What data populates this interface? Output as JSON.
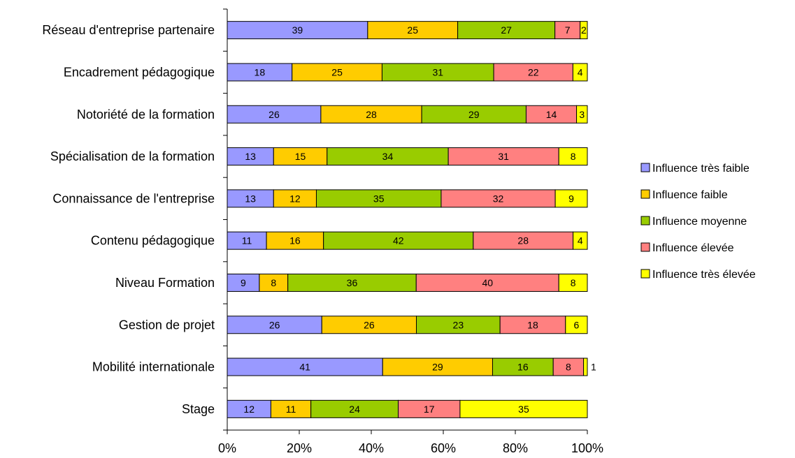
{
  "chart_data": {
    "type": "bar",
    "orientation": "horizontal",
    "stacked": "percent",
    "title": "",
    "xlabel": "",
    "ylabel": "",
    "xlim": [
      0,
      100
    ],
    "x_ticks": [
      "0%",
      "20%",
      "40%",
      "60%",
      "80%",
      "100%"
    ],
    "grid": false,
    "legend_position": "right",
    "categories": [
      "Réseau d'entreprise partenaire",
      "Encadrement pédagogique",
      "Notoriété de la formation",
      "Spécialisation de la formation",
      "Connaissance de l'entreprise",
      "Contenu pédagogique",
      "Niveau Formation",
      "Gestion de projet",
      "Mobilité internationale",
      "Stage"
    ],
    "series": [
      {
        "name": "Influence très faible",
        "color": "#9999ff",
        "values": [
          39,
          18,
          26,
          13,
          13,
          11,
          9,
          26,
          41,
          12
        ]
      },
      {
        "name": "Influence faible",
        "color": "#ffcc00",
        "values": [
          25,
          25,
          28,
          15,
          12,
          16,
          8,
          26,
          29,
          11
        ]
      },
      {
        "name": "Influence moyenne",
        "color": "#99cc00",
        "values": [
          27,
          31,
          29,
          34,
          35,
          42,
          36,
          23,
          16,
          24
        ]
      },
      {
        "name": "Influence élevée",
        "color": "#ff8080",
        "values": [
          7,
          22,
          14,
          31,
          32,
          28,
          40,
          18,
          8,
          17
        ]
      },
      {
        "name": "Influence très élevée",
        "color": "#ffff00",
        "values": [
          2,
          4,
          3,
          8,
          9,
          4,
          8,
          6,
          1,
          35
        ]
      }
    ]
  }
}
